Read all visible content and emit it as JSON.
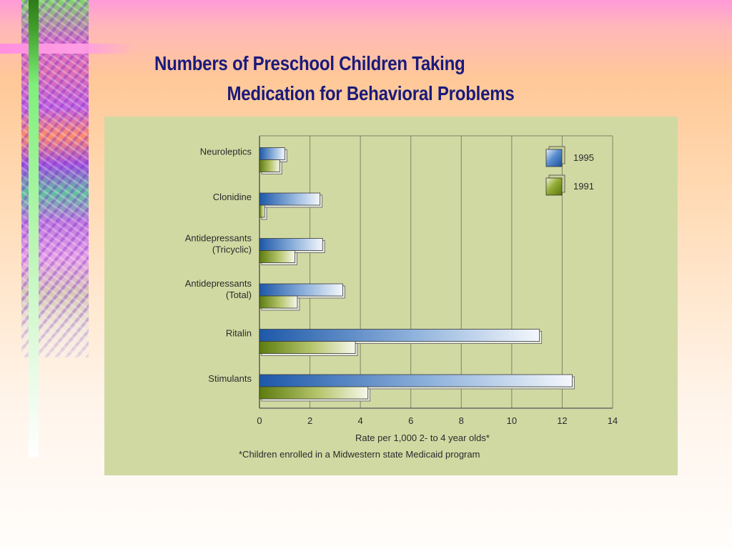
{
  "slide": {
    "title_line1": "Numbers of Preschool Children Taking",
    "title_line2": "Medication for Behavioral Problems"
  },
  "chart_data": {
    "type": "bar",
    "orientation": "horizontal",
    "categories": [
      [
        "Neuroleptics"
      ],
      [
        "Clonidine"
      ],
      [
        "Antidepressants",
        "(Tricyclic)"
      ],
      [
        "Antidepressants",
        "(Total)"
      ],
      [
        "Ritalin"
      ],
      [
        "Stimulants"
      ]
    ],
    "series": [
      {
        "name": "1995",
        "values": [
          1.0,
          2.4,
          2.5,
          3.3,
          11.1,
          12.4
        ],
        "color": "#2f6cb4"
      },
      {
        "name": "1991",
        "values": [
          0.8,
          0.2,
          1.4,
          1.5,
          3.8,
          4.3
        ],
        "color": "#6f8f16"
      }
    ],
    "xlim": [
      0,
      14
    ],
    "xticks": [
      0,
      2,
      4,
      6,
      8,
      10,
      12,
      14
    ],
    "xlabel": "Rate per 1,000 2- to 4 year olds*",
    "footnote": "*Children enrolled in a Midwestern state Medicaid program",
    "grid": "vertical",
    "legend_position": "top-right"
  }
}
